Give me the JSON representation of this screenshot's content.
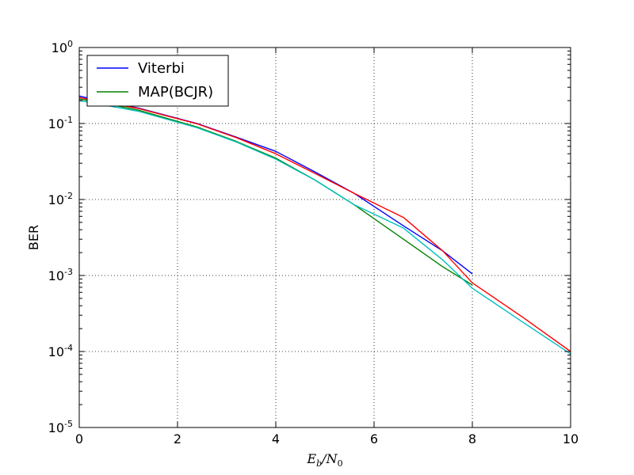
{
  "chart_data": {
    "type": "line",
    "xlabel": "E_b/N_0",
    "ylabel": "BER",
    "xlim": [
      0,
      10
    ],
    "ylim": [
      1e-05,
      1
    ],
    "yscale": "log",
    "grid": true,
    "grid_style": "dotted",
    "legend_placement": "top-left",
    "x_ticks": [
      0,
      2,
      4,
      6,
      8,
      10
    ],
    "x_tick_labels": [
      "0",
      "2",
      "4",
      "6",
      "8",
      "10"
    ],
    "y_ticks": [
      1e-05,
      0.0001,
      0.001,
      0.01,
      0.1,
      1
    ],
    "y_tick_labels": [
      {
        "base": "10",
        "exp": "-5"
      },
      {
        "base": "10",
        "exp": "-4"
      },
      {
        "base": "10",
        "exp": "-3"
      },
      {
        "base": "10",
        "exp": "-2"
      },
      {
        "base": "10",
        "exp": "-1"
      },
      {
        "base": "10",
        "exp": "0"
      }
    ],
    "series": [
      {
        "name": "Viterbi",
        "color": "#0000ff",
        "in_legend": true,
        "x": [
          0,
          0.4,
          1.2,
          2.4,
          3.2,
          4.0,
          4.8,
          5.6,
          6.6,
          7.4,
          8.0
        ],
        "y": [
          0.23,
          0.2,
          0.16,
          0.1,
          0.066,
          0.043,
          0.023,
          0.012,
          0.0045,
          0.0021,
          0.00105
        ]
      },
      {
        "name": "MAP(BCJR)",
        "color": "#008000",
        "in_legend": true,
        "x": [
          0,
          0.4,
          1.2,
          2.4,
          3.2,
          4.0,
          4.8,
          5.6,
          6.6,
          7.4,
          8.0
        ],
        "y": [
          0.21,
          0.19,
          0.15,
          0.09,
          0.058,
          0.035,
          0.018,
          0.0085,
          0.003,
          0.0013,
          0.00075
        ]
      },
      {
        "color": "#ff0000",
        "in_legend": false,
        "x": [
          0,
          0.4,
          1.2,
          2.4,
          3.2,
          4.0,
          4.8,
          5.6,
          6.6,
          7.4,
          8.0,
          9.0,
          10.0
        ],
        "y": [
          0.22,
          0.195,
          0.158,
          0.099,
          0.065,
          0.04,
          0.022,
          0.012,
          0.0058,
          0.0021,
          0.0008,
          0.00029,
          0.0001
        ]
      },
      {
        "color": "#00bfbf",
        "in_legend": false,
        "x": [
          0,
          0.4,
          1.2,
          2.4,
          3.2,
          4.0,
          4.8,
          5.6,
          6.6,
          7.4,
          8.0,
          9.0,
          10.0
        ],
        "y": [
          0.2,
          0.18,
          0.145,
          0.088,
          0.057,
          0.034,
          0.018,
          0.0085,
          0.0042,
          0.0016,
          0.00068,
          0.00025,
          9.3e-05
        ]
      }
    ]
  }
}
